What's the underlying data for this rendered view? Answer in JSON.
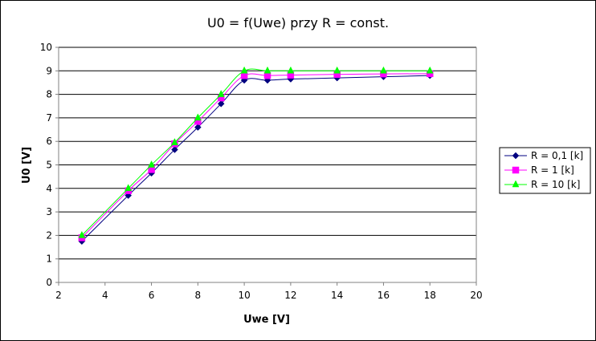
{
  "chart_data": {
    "type": "line",
    "title": "U0 = f(Uwe) przy R = const.",
    "xlabel": "Uwe [V]",
    "ylabel": "U0 [V]",
    "xlim": [
      2,
      20
    ],
    "ylim": [
      0,
      10
    ],
    "x_ticks": [
      2,
      4,
      6,
      8,
      10,
      12,
      14,
      16,
      18,
      20
    ],
    "y_ticks": [
      0,
      1,
      2,
      3,
      4,
      5,
      6,
      7,
      8,
      9,
      10
    ],
    "grid": "horizontal major gridlines",
    "legend_position": "right",
    "x": [
      3,
      5,
      6,
      7,
      8,
      9,
      10,
      11,
      12,
      14,
      16,
      18
    ],
    "series": [
      {
        "name": "R = 0,1 [k]",
        "color": "#000080",
        "marker": "diamond",
        "values": [
          1.75,
          3.7,
          4.65,
          5.65,
          6.6,
          7.6,
          8.6,
          8.6,
          8.65,
          8.7,
          8.75,
          8.8
        ]
      },
      {
        "name": "R = 1 [k]",
        "color": "#ff00ff",
        "marker": "square",
        "values": [
          1.9,
          3.9,
          4.8,
          5.9,
          6.85,
          7.85,
          8.8,
          8.8,
          8.82,
          8.85,
          8.87,
          8.88
        ]
      },
      {
        "name": "R = 10  [k]",
        "color": "#00ff00",
        "marker": "triangle",
        "values": [
          2.0,
          4.0,
          5.0,
          5.95,
          7.0,
          8.0,
          9.0,
          9.0,
          9.0,
          9.0,
          9.0,
          9.0
        ]
      }
    ]
  }
}
